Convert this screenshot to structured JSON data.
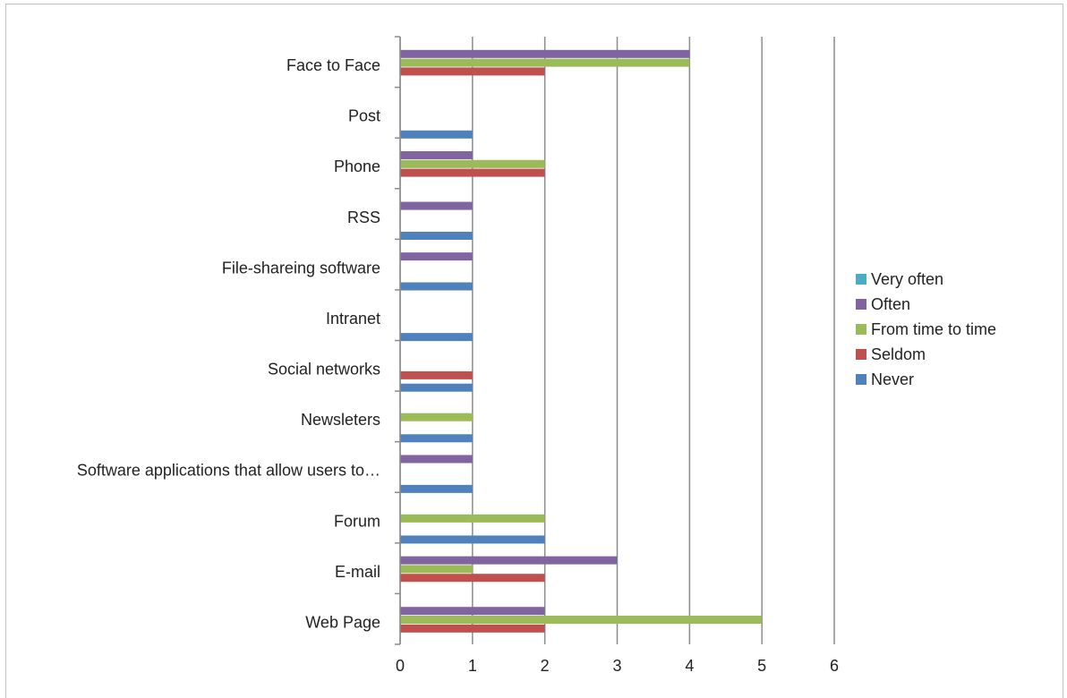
{
  "chart_data": {
    "type": "bar",
    "orientation": "horizontal",
    "title": "",
    "xlabel": "",
    "ylabel": "",
    "xlim": [
      0,
      6
    ],
    "x_ticks": [
      "0",
      "1",
      "2",
      "3",
      "4",
      "5",
      "6"
    ],
    "grid": true,
    "legend_position": "right",
    "categories": [
      "Face to Face",
      "Post",
      "Phone",
      "RSS",
      "File-shareing software",
      "Intranet",
      "Social networks",
      "Newsleters",
      "Software applications that allow users to…",
      "Forum",
      "E-mail",
      "Web Page"
    ],
    "series": [
      {
        "name": "Very often",
        "color": "#4bacc6",
        "values": [
          0,
          0,
          0,
          0,
          0,
          0,
          0,
          0,
          0,
          0,
          0,
          0
        ]
      },
      {
        "name": "Often",
        "color": "#8064a2",
        "values": [
          4,
          0,
          1,
          1,
          1,
          0,
          0,
          0,
          1,
          0,
          3,
          2
        ]
      },
      {
        "name": "From time to time",
        "color": "#9bbb59",
        "values": [
          4,
          0,
          2,
          0,
          0,
          0,
          0,
          1,
          0,
          2,
          1,
          5
        ]
      },
      {
        "name": "Seldom",
        "color": "#c0504d",
        "values": [
          2,
          0,
          2,
          0,
          0,
          0,
          1,
          0,
          0,
          0,
          2,
          2
        ]
      },
      {
        "name": "Never",
        "color": "#4f81bd",
        "values": [
          0,
          1,
          0,
          1,
          1,
          1,
          1,
          1,
          1,
          2,
          0,
          0
        ]
      }
    ]
  }
}
